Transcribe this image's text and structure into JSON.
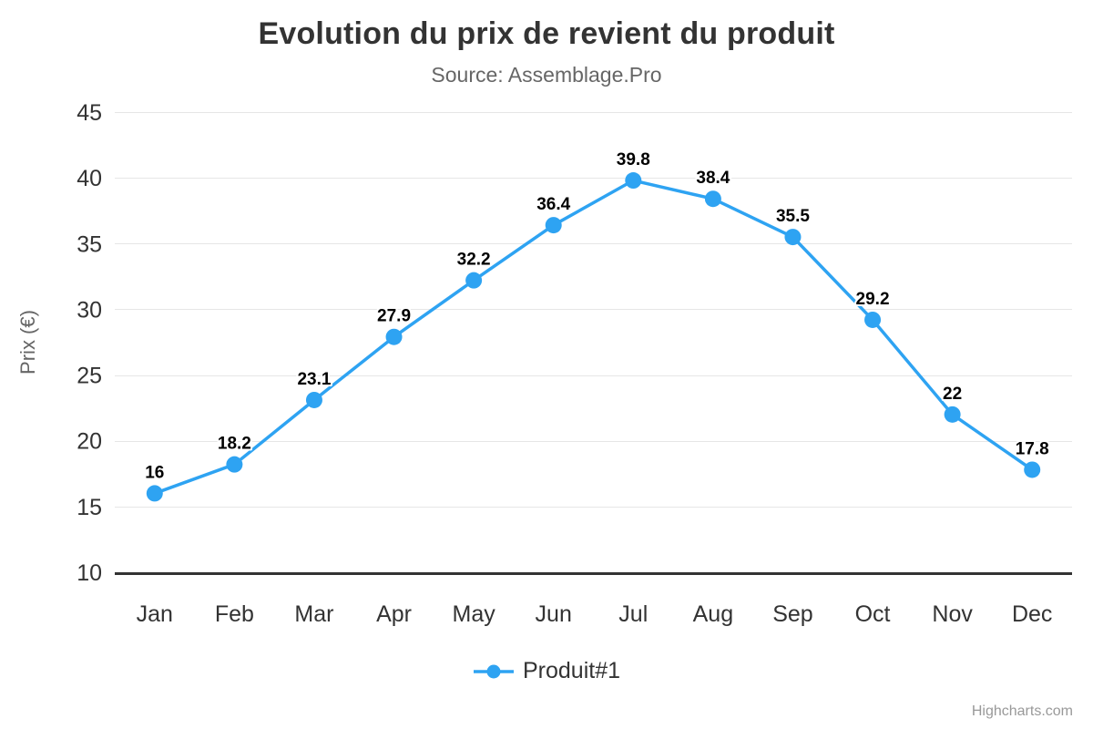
{
  "chart_data": {
    "type": "line",
    "title": "Evolution du prix de revient du produit",
    "subtitle": "Source: Assemblage.Pro",
    "xlabel": "",
    "ylabel": "Prix (€)",
    "categories": [
      "Jan",
      "Feb",
      "Mar",
      "Apr",
      "May",
      "Jun",
      "Jul",
      "Aug",
      "Sep",
      "Oct",
      "Nov",
      "Dec"
    ],
    "series": [
      {
        "name": "Produit#1",
        "values": [
          16,
          18.2,
          23.1,
          27.9,
          32.2,
          36.4,
          39.8,
          38.4,
          35.5,
          29.2,
          22,
          17.8
        ],
        "color": "#2EA3F2"
      }
    ],
    "ylim": [
      10,
      45
    ],
    "ytick_step": 5,
    "grid": true,
    "data_labels": true,
    "legend_position": "bottom",
    "colors": {
      "grid_line": "#e6e6e6",
      "axis_line": "#333333",
      "tick_label": "#333333",
      "axis_title": "#666666",
      "data_label": "#000000"
    }
  },
  "credits": {
    "label": "Highcharts.com"
  }
}
